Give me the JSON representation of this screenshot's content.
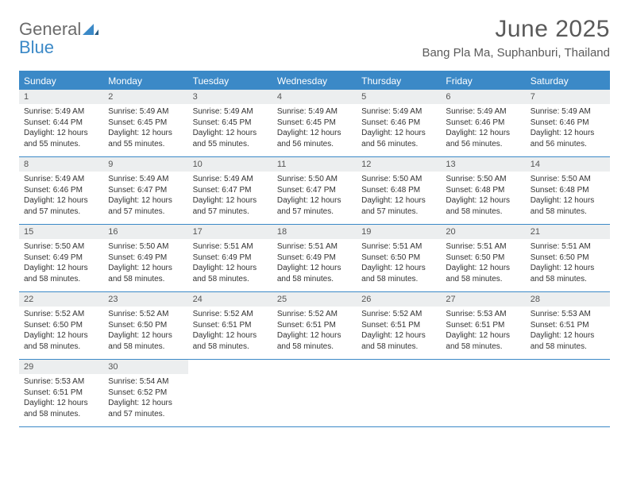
{
  "logo": {
    "general": "General",
    "blue": "Blue"
  },
  "title": "June 2025",
  "location": "Bang Pla Ma, Suphanburi, Thailand",
  "colors": {
    "accent": "#3b89c7",
    "header_text": "#5a5a5a",
    "daynum_bg": "#eceeef",
    "body_text": "#333333",
    "background": "#ffffff"
  },
  "dow": [
    "Sunday",
    "Monday",
    "Tuesday",
    "Wednesday",
    "Thursday",
    "Friday",
    "Saturday"
  ],
  "days": [
    {
      "n": "1",
      "sunrise": "5:49 AM",
      "sunset": "6:44 PM",
      "daylight": "12 hours and 55 minutes."
    },
    {
      "n": "2",
      "sunrise": "5:49 AM",
      "sunset": "6:45 PM",
      "daylight": "12 hours and 55 minutes."
    },
    {
      "n": "3",
      "sunrise": "5:49 AM",
      "sunset": "6:45 PM",
      "daylight": "12 hours and 55 minutes."
    },
    {
      "n": "4",
      "sunrise": "5:49 AM",
      "sunset": "6:45 PM",
      "daylight": "12 hours and 56 minutes."
    },
    {
      "n": "5",
      "sunrise": "5:49 AM",
      "sunset": "6:46 PM",
      "daylight": "12 hours and 56 minutes."
    },
    {
      "n": "6",
      "sunrise": "5:49 AM",
      "sunset": "6:46 PM",
      "daylight": "12 hours and 56 minutes."
    },
    {
      "n": "7",
      "sunrise": "5:49 AM",
      "sunset": "6:46 PM",
      "daylight": "12 hours and 56 minutes."
    },
    {
      "n": "8",
      "sunrise": "5:49 AM",
      "sunset": "6:46 PM",
      "daylight": "12 hours and 57 minutes."
    },
    {
      "n": "9",
      "sunrise": "5:49 AM",
      "sunset": "6:47 PM",
      "daylight": "12 hours and 57 minutes."
    },
    {
      "n": "10",
      "sunrise": "5:49 AM",
      "sunset": "6:47 PM",
      "daylight": "12 hours and 57 minutes."
    },
    {
      "n": "11",
      "sunrise": "5:50 AM",
      "sunset": "6:47 PM",
      "daylight": "12 hours and 57 minutes."
    },
    {
      "n": "12",
      "sunrise": "5:50 AM",
      "sunset": "6:48 PM",
      "daylight": "12 hours and 57 minutes."
    },
    {
      "n": "13",
      "sunrise": "5:50 AM",
      "sunset": "6:48 PM",
      "daylight": "12 hours and 58 minutes."
    },
    {
      "n": "14",
      "sunrise": "5:50 AM",
      "sunset": "6:48 PM",
      "daylight": "12 hours and 58 minutes."
    },
    {
      "n": "15",
      "sunrise": "5:50 AM",
      "sunset": "6:49 PM",
      "daylight": "12 hours and 58 minutes."
    },
    {
      "n": "16",
      "sunrise": "5:50 AM",
      "sunset": "6:49 PM",
      "daylight": "12 hours and 58 minutes."
    },
    {
      "n": "17",
      "sunrise": "5:51 AM",
      "sunset": "6:49 PM",
      "daylight": "12 hours and 58 minutes."
    },
    {
      "n": "18",
      "sunrise": "5:51 AM",
      "sunset": "6:49 PM",
      "daylight": "12 hours and 58 minutes."
    },
    {
      "n": "19",
      "sunrise": "5:51 AM",
      "sunset": "6:50 PM",
      "daylight": "12 hours and 58 minutes."
    },
    {
      "n": "20",
      "sunrise": "5:51 AM",
      "sunset": "6:50 PM",
      "daylight": "12 hours and 58 minutes."
    },
    {
      "n": "21",
      "sunrise": "5:51 AM",
      "sunset": "6:50 PM",
      "daylight": "12 hours and 58 minutes."
    },
    {
      "n": "22",
      "sunrise": "5:52 AM",
      "sunset": "6:50 PM",
      "daylight": "12 hours and 58 minutes."
    },
    {
      "n": "23",
      "sunrise": "5:52 AM",
      "sunset": "6:50 PM",
      "daylight": "12 hours and 58 minutes."
    },
    {
      "n": "24",
      "sunrise": "5:52 AM",
      "sunset": "6:51 PM",
      "daylight": "12 hours and 58 minutes."
    },
    {
      "n": "25",
      "sunrise": "5:52 AM",
      "sunset": "6:51 PM",
      "daylight": "12 hours and 58 minutes."
    },
    {
      "n": "26",
      "sunrise": "5:52 AM",
      "sunset": "6:51 PM",
      "daylight": "12 hours and 58 minutes."
    },
    {
      "n": "27",
      "sunrise": "5:53 AM",
      "sunset": "6:51 PM",
      "daylight": "12 hours and 58 minutes."
    },
    {
      "n": "28",
      "sunrise": "5:53 AM",
      "sunset": "6:51 PM",
      "daylight": "12 hours and 58 minutes."
    },
    {
      "n": "29",
      "sunrise": "5:53 AM",
      "sunset": "6:51 PM",
      "daylight": "12 hours and 58 minutes."
    },
    {
      "n": "30",
      "sunrise": "5:54 AM",
      "sunset": "6:52 PM",
      "daylight": "12 hours and 57 minutes."
    }
  ],
  "labels": {
    "sunrise": "Sunrise: ",
    "sunset": "Sunset: ",
    "daylight": "Daylight: "
  },
  "layout": {
    "first_weekday_index": 0,
    "total_days": 30,
    "columns": 7
  }
}
